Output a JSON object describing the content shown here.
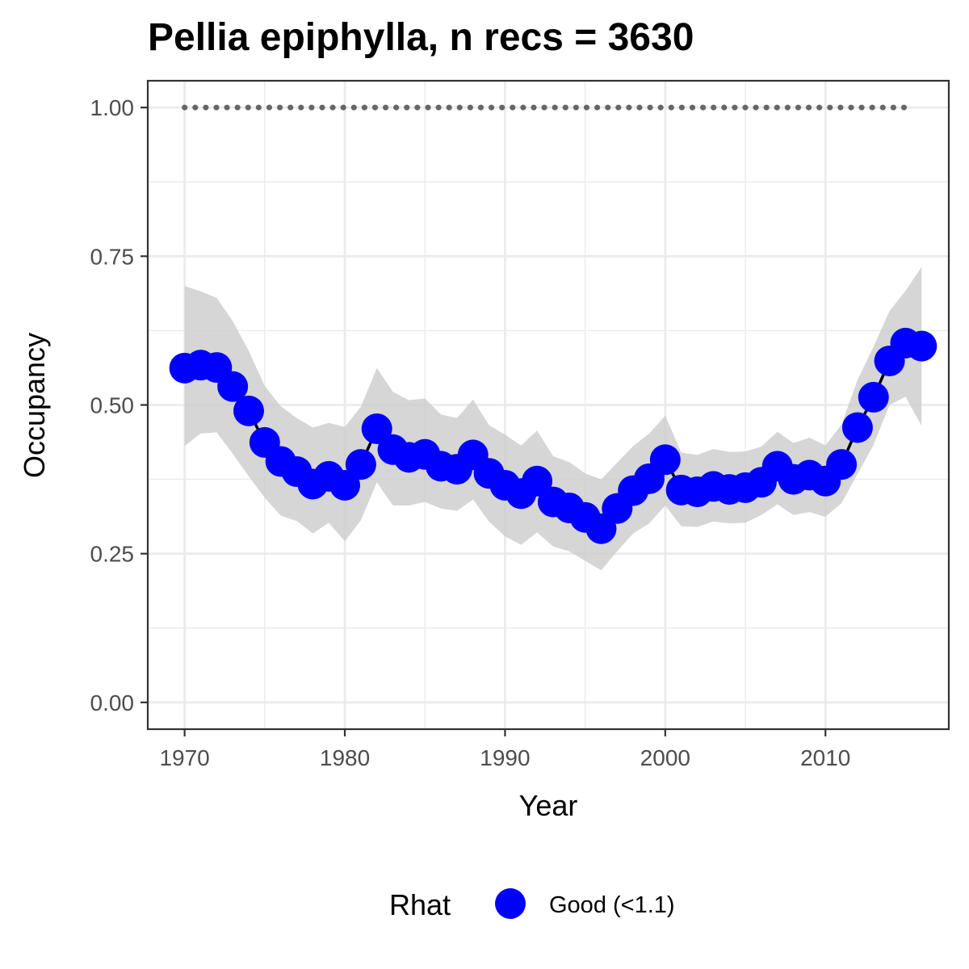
{
  "chart_data": {
    "type": "line",
    "title": "Pellia epiphylla, n recs = 3630",
    "xlabel": "Year",
    "ylabel": "Occupancy",
    "xlim": [
      1967.7,
      2017.7
    ],
    "ylim": [
      -0.045,
      1.045
    ],
    "x_ticks": [
      1970,
      1980,
      1990,
      2000,
      2010
    ],
    "x_tick_labels": [
      "1970",
      "1980",
      "1990",
      "2000",
      "2010"
    ],
    "y_ticks": [
      0,
      0.25,
      0.5,
      0.75,
      1.0
    ],
    "y_tick_labels": [
      "0.00",
      "0.25",
      "0.50",
      "0.75",
      "1.00"
    ],
    "grid": true,
    "legend": {
      "title": "Rhat",
      "position": "bottom",
      "entries": [
        {
          "label": "Good (<1.1)",
          "color": "#0000ff"
        }
      ]
    },
    "colors": {
      "point": "#0000ff",
      "line": "#000000",
      "ribbon": "#cccccc",
      "dotted": "#666666",
      "grid": "#ebebeb",
      "panel_border": "#333333"
    },
    "years": [
      1970,
      1971,
      1972,
      1973,
      1974,
      1975,
      1976,
      1977,
      1978,
      1979,
      1980,
      1981,
      1982,
      1983,
      1984,
      1985,
      1986,
      1987,
      1988,
      1989,
      1990,
      1991,
      1992,
      1993,
      1994,
      1995,
      1996,
      1997,
      1998,
      1999,
      2000,
      2001,
      2002,
      2003,
      2004,
      2005,
      2006,
      2007,
      2008,
      2009,
      2010,
      2011,
      2012,
      2013,
      2014,
      2015,
      2016
    ],
    "series": [
      {
        "type": "line",
        "values": [
          0.562,
          0.567,
          0.563,
          0.531,
          0.49,
          0.437,
          0.405,
          0.388,
          0.367,
          0.38,
          0.365,
          0.4,
          0.46,
          0.425,
          0.412,
          0.417,
          0.397,
          0.392,
          0.416,
          0.385,
          0.365,
          0.351,
          0.372,
          0.337,
          0.327,
          0.311,
          0.292,
          0.326,
          0.356,
          0.376,
          0.408,
          0.357,
          0.354,
          0.363,
          0.358,
          0.361,
          0.37,
          0.397,
          0.375,
          0.382,
          0.372,
          0.4,
          0.462,
          0.513,
          0.574,
          0.604,
          0.599
        ],
        "lower": [
          0.431,
          0.452,
          0.454,
          0.418,
          0.38,
          0.344,
          0.314,
          0.305,
          0.284,
          0.302,
          0.271,
          0.306,
          0.37,
          0.331,
          0.331,
          0.337,
          0.326,
          0.322,
          0.341,
          0.304,
          0.279,
          0.265,
          0.286,
          0.262,
          0.254,
          0.238,
          0.222,
          0.254,
          0.284,
          0.301,
          0.331,
          0.296,
          0.295,
          0.304,
          0.301,
          0.302,
          0.315,
          0.333,
          0.315,
          0.32,
          0.312,
          0.335,
          0.384,
          0.433,
          0.5,
          0.514,
          0.465
        ],
        "upper": [
          0.7,
          0.691,
          0.68,
          0.641,
          0.591,
          0.532,
          0.498,
          0.478,
          0.462,
          0.47,
          0.463,
          0.497,
          0.562,
          0.522,
          0.508,
          0.511,
          0.484,
          0.478,
          0.509,
          0.466,
          0.45,
          0.432,
          0.457,
          0.414,
          0.404,
          0.385,
          0.375,
          0.403,
          0.431,
          0.452,
          0.482,
          0.42,
          0.416,
          0.426,
          0.421,
          0.422,
          0.43,
          0.455,
          0.436,
          0.445,
          0.432,
          0.467,
          0.542,
          0.598,
          0.658,
          0.692,
          0.732
        ]
      },
      {
        "type": "dotted",
        "x_start": 1970,
        "x_end": 2015,
        "value": 1.0
      }
    ]
  }
}
